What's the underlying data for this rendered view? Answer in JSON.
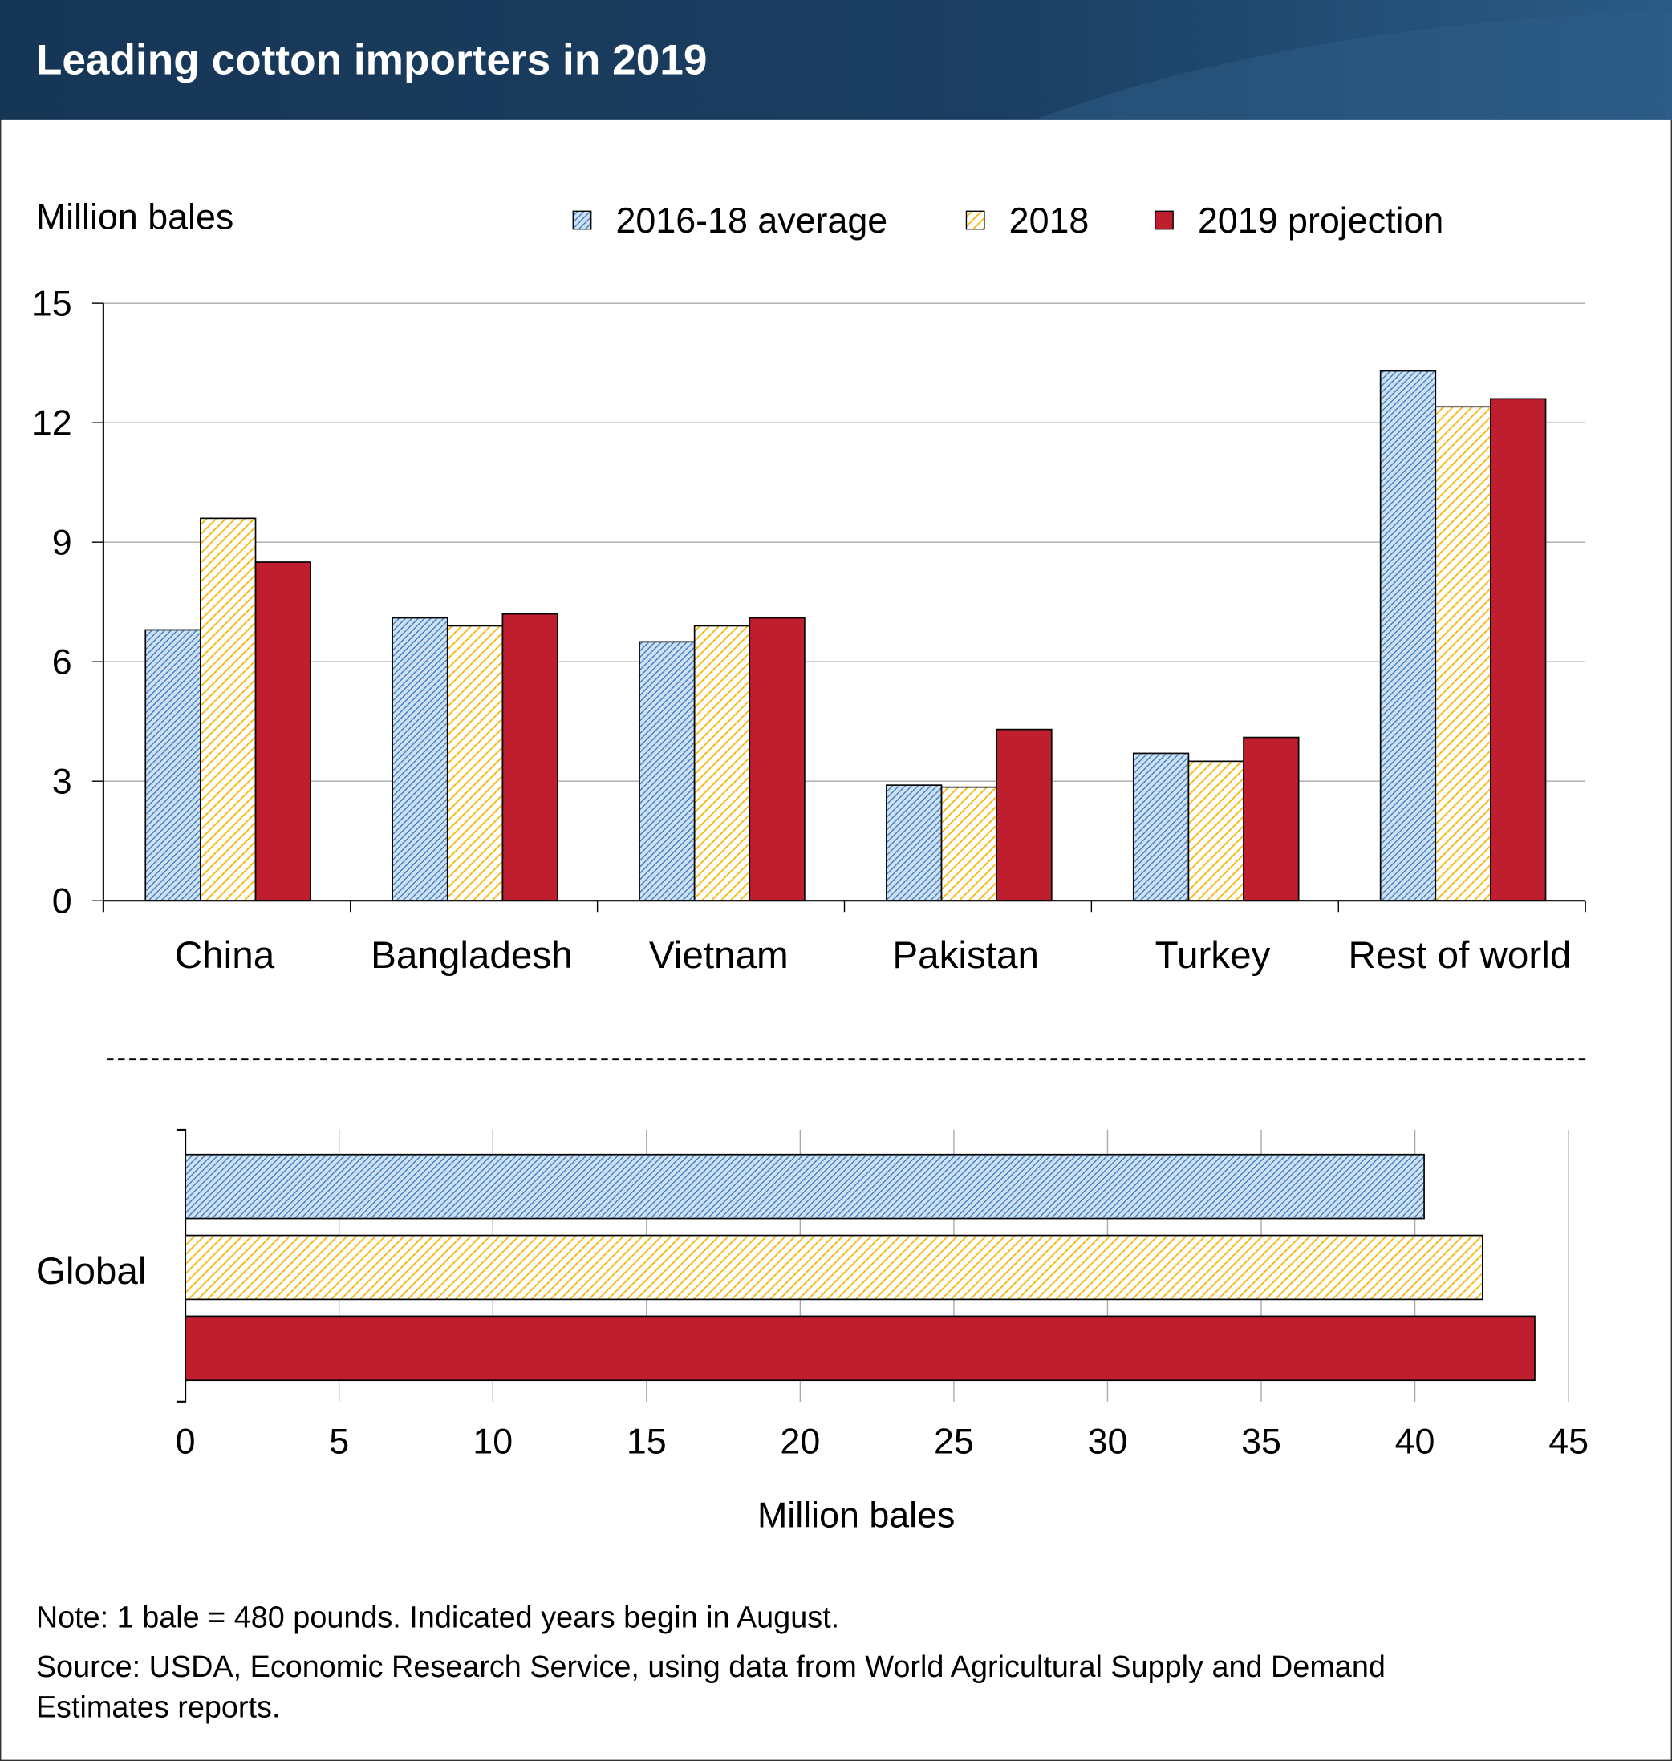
{
  "header": {
    "title": "Leading cotton importers in 2019"
  },
  "colors": {
    "header_bg": "#1e4466",
    "blue": "#4a86c5",
    "yellow": "#f7b500",
    "red": "#be1e2d"
  },
  "chart_data": [
    {
      "type": "bar",
      "ylabel": "Million bales",
      "ylim": [
        0,
        15
      ],
      "yticks": [
        0,
        3,
        6,
        9,
        12,
        15
      ],
      "grid": true,
      "legend_position": "top",
      "categories": [
        "China",
        "Bangladesh",
        "Vietnam",
        "Pakistan",
        "Turkey",
        "Rest of world"
      ],
      "series": [
        {
          "name": "2016-18 average",
          "values": [
            6.8,
            7.1,
            6.5,
            2.9,
            3.7,
            13.3
          ]
        },
        {
          "name": "2018",
          "values": [
            9.6,
            6.9,
            6.9,
            2.85,
            3.5,
            12.4
          ]
        },
        {
          "name": "2019 projection",
          "values": [
            8.5,
            7.2,
            7.1,
            4.3,
            4.1,
            12.6
          ]
        }
      ]
    },
    {
      "type": "bar",
      "orientation": "horizontal",
      "categories": [
        "Global"
      ],
      "xlabel": "Million bales",
      "xlim": [
        0,
        45
      ],
      "xticks": [
        0,
        5,
        10,
        15,
        20,
        25,
        30,
        35,
        40,
        45
      ],
      "series": [
        {
          "name": "2016-18 average",
          "values": [
            40.3
          ]
        },
        {
          "name": "2018",
          "values": [
            42.2
          ]
        },
        {
          "name": "2019 projection",
          "values": [
            43.9
          ]
        }
      ]
    }
  ],
  "footer": {
    "note": "Note: 1 bale = 480 pounds. Indicated years begin in August.",
    "source_line1": "Source: USDA, Economic Research Service, using data from World Agricultural Supply and Demand",
    "source_line2": "Estimates reports."
  }
}
